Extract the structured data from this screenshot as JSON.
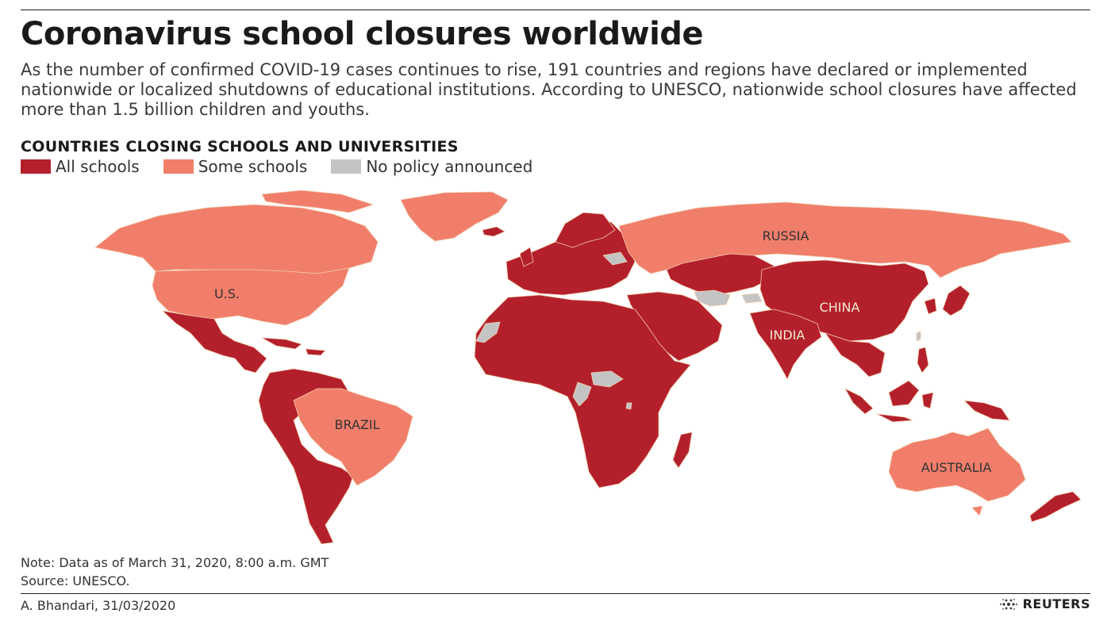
{
  "header": {
    "title": "Coronavirus school closures worldwide",
    "subtitle": "As the number of confirmed COVID-19 cases continues to rise, 191 countries and regions have declared or implemented nationwide or localized shutdowns of educational institutions. According to UNESCO, nationwide school closures have affected more than 1.5 billion children and youths."
  },
  "map": {
    "heading": "COUNTRIES CLOSING SCHOOLS AND UNIVERSITIES",
    "legend": [
      {
        "label": "All schools",
        "color": "#b3202c"
      },
      {
        "label": "Some schools",
        "color": "#f07e6b"
      },
      {
        "label": "No policy announced",
        "color": "#c4c4c4"
      }
    ],
    "labels": {
      "russia": "RUSSIA",
      "us": "U.S.",
      "china": "CHINA",
      "india": "INDIA",
      "brazil": "BRAZIL",
      "australia": "AUSTRALIA"
    },
    "colors": {
      "all": "#b3202c",
      "some": "#f07e6b",
      "none": "#c4c4c4",
      "border": "#f3c9a8"
    }
  },
  "footer": {
    "note": "Note: Data as of March 31, 2020, 8:00 a.m. GMT",
    "source": "Source: UNESCO.",
    "credit": "A. Bhandari, 31/03/2020",
    "brand": "REUTERS"
  }
}
